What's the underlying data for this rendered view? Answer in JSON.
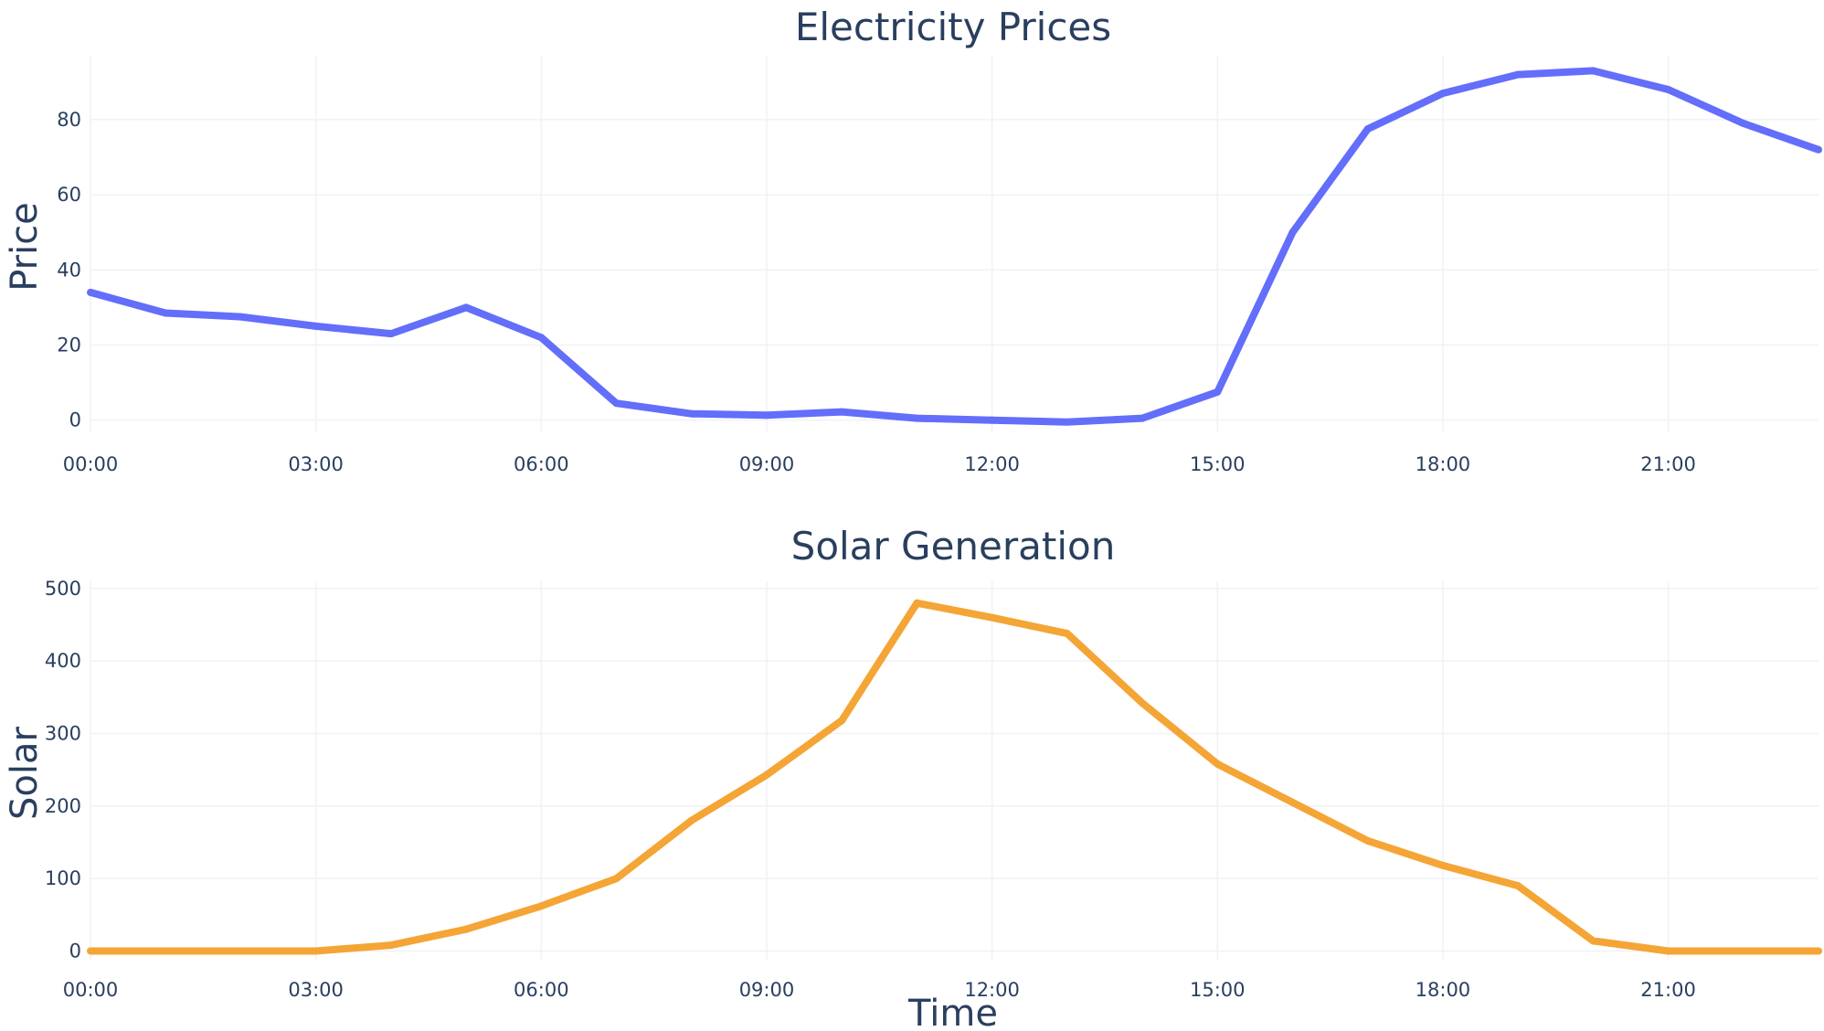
{
  "chart_data": [
    {
      "type": "line",
      "title": "Electricity Prices",
      "xlabel": "",
      "ylabel": "Price",
      "x": [
        "00:00",
        "01:00",
        "02:00",
        "03:00",
        "04:00",
        "05:00",
        "06:00",
        "07:00",
        "08:00",
        "09:00",
        "10:00",
        "11:00",
        "12:00",
        "13:00",
        "14:00",
        "15:00",
        "16:00",
        "17:00",
        "18:00",
        "19:00",
        "20:00",
        "21:00",
        "22:00",
        "23:00"
      ],
      "values": [
        34,
        28.5,
        27.5,
        25,
        23,
        30,
        22,
        4.5,
        1.7,
        1.3,
        2.2,
        0.5,
        0,
        -0.5,
        0.5,
        7.5,
        50,
        77.5,
        87,
        92,
        93,
        88,
        79,
        72
      ],
      "xticks": [
        "00:00",
        "03:00",
        "06:00",
        "09:00",
        "12:00",
        "15:00",
        "18:00",
        "21:00"
      ],
      "yticks": [
        0,
        20,
        40,
        60,
        80
      ],
      "ylim": [
        -3,
        97
      ],
      "color": "#636efa",
      "grid": true
    },
    {
      "type": "line",
      "title": "Solar Generation",
      "xlabel": "Time",
      "ylabel": "Solar",
      "x": [
        "00:00",
        "01:00",
        "02:00",
        "03:00",
        "04:00",
        "05:00",
        "06:00",
        "07:00",
        "08:00",
        "09:00",
        "10:00",
        "11:00",
        "12:00",
        "13:00",
        "14:00",
        "15:00",
        "16:00",
        "17:00",
        "18:00",
        "19:00",
        "20:00",
        "21:00",
        "22:00",
        "23:00"
      ],
      "values": [
        0,
        0,
        0,
        0,
        8,
        30,
        62,
        100,
        180,
        243,
        318,
        480,
        460,
        438,
        342,
        258,
        205,
        152,
        118,
        90,
        14,
        0,
        0,
        0
      ],
      "xticks": [
        "00:00",
        "03:00",
        "06:00",
        "09:00",
        "12:00",
        "15:00",
        "18:00",
        "21:00"
      ],
      "yticks": [
        0,
        100,
        200,
        300,
        400,
        500
      ],
      "ylim": [
        -12,
        510
      ],
      "color": "#f4a535",
      "grid": true
    }
  ]
}
